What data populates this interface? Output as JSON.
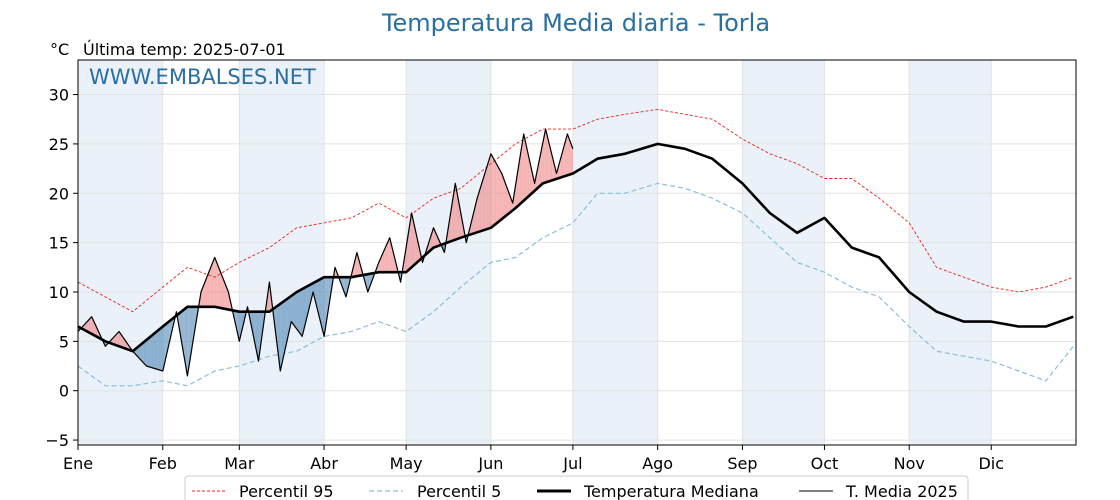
{
  "header": {
    "title": "Temperatura Media diaria - Torla",
    "unit": "°C",
    "last_temp": "Última temp: 2025-07-01",
    "watermark": "WWW.EMBALSES.NET"
  },
  "colors": {
    "p95": "#e8261f",
    "p5": "#89bfd8",
    "median": "#000000",
    "current": "#000000",
    "above_fill": "#f08a8a",
    "below_fill": "#3a78ad",
    "title": "#2a6fa0",
    "band": "#eaf1f9"
  },
  "legend": [
    {
      "label": "Percentil 95",
      "style": "p95"
    },
    {
      "label": "Percentil 5",
      "style": "p5"
    },
    {
      "label": "Temperatura Mediana",
      "style": "median"
    },
    {
      "label": "T. Media 2025",
      "style": "current"
    }
  ],
  "chart_data": {
    "type": "line",
    "title": "Temperatura Media diaria - Torla",
    "ylabel": "°C",
    "xlim": [
      0,
      365
    ],
    "ylim": [
      -5.5,
      33.5
    ],
    "yticks": [
      -5,
      0,
      5,
      10,
      15,
      20,
      25,
      30
    ],
    "ytick_labels": [
      "−5",
      "0",
      "5",
      "10",
      "15",
      "20",
      "25",
      "30"
    ],
    "month_labels": [
      "Ene",
      "Feb",
      "Mar",
      "Abr",
      "May",
      "Jun",
      "Jul",
      "Ago",
      "Sep",
      "Oct",
      "Nov",
      "Dic"
    ],
    "month_start_day": [
      0,
      31,
      59,
      90,
      120,
      151,
      181,
      212,
      243,
      273,
      304,
      334
    ],
    "shaded_months": [
      0,
      2,
      4,
      6,
      8,
      10
    ],
    "grid": true,
    "legend_position": "bottom",
    "series": [
      {
        "name": "Percentil 95",
        "key": "p95",
        "x": [
          0,
          10,
          20,
          31,
          40,
          50,
          59,
          70,
          80,
          90,
          100,
          110,
          120,
          130,
          140,
          151,
          160,
          170,
          181,
          190,
          200,
          212,
          222,
          232,
          243,
          253,
          263,
          273,
          283,
          293,
          304,
          314,
          324,
          334,
          344,
          354,
          364
        ],
        "y": [
          11.0,
          9.5,
          8.0,
          10.5,
          12.5,
          11.5,
          13.0,
          14.5,
          16.5,
          17.0,
          17.5,
          19.0,
          17.5,
          19.5,
          20.5,
          23.0,
          25.0,
          26.5,
          26.5,
          27.5,
          28.0,
          28.5,
          28.0,
          27.5,
          25.5,
          24.0,
          23.0,
          21.5,
          21.5,
          19.5,
          17.0,
          12.5,
          11.5,
          10.5,
          10.0,
          10.5,
          11.5
        ]
      },
      {
        "name": "Percentil 5",
        "key": "p5",
        "x": [
          0,
          10,
          20,
          31,
          40,
          50,
          59,
          70,
          80,
          90,
          100,
          110,
          120,
          130,
          140,
          151,
          160,
          170,
          181,
          190,
          200,
          212,
          222,
          232,
          243,
          253,
          263,
          273,
          283,
          293,
          304,
          314,
          324,
          334,
          344,
          354,
          364
        ],
        "y": [
          2.5,
          0.5,
          0.5,
          1.0,
          0.5,
          2.0,
          2.5,
          3.5,
          4.0,
          5.5,
          6.0,
          7.0,
          6.0,
          8.0,
          10.5,
          13.0,
          13.5,
          15.5,
          17.0,
          20.0,
          20.0,
          21.0,
          20.5,
          19.5,
          18.0,
          15.5,
          13.0,
          12.0,
          10.5,
          9.5,
          6.5,
          4.0,
          3.5,
          3.0,
          2.0,
          1.0,
          4.5
        ]
      },
      {
        "name": "Temperatura Mediana",
        "key": "median",
        "x": [
          0,
          10,
          20,
          31,
          40,
          50,
          59,
          70,
          80,
          90,
          100,
          110,
          120,
          130,
          140,
          151,
          160,
          170,
          181,
          190,
          200,
          212,
          222,
          232,
          243,
          253,
          263,
          273,
          283,
          293,
          304,
          314,
          324,
          334,
          344,
          354,
          364
        ],
        "y": [
          6.5,
          5.0,
          4.0,
          6.5,
          8.5,
          8.5,
          8.0,
          8.0,
          10.0,
          11.5,
          11.5,
          12.0,
          12.0,
          14.5,
          15.5,
          16.5,
          18.5,
          21.0,
          22.0,
          23.5,
          24.0,
          25.0,
          24.5,
          23.5,
          21.0,
          18.0,
          16.0,
          17.5,
          14.5,
          13.5,
          10.0,
          8.0,
          7.0,
          7.0,
          6.5,
          6.5,
          7.5
        ]
      },
      {
        "name": "T. Media 2025",
        "key": "current",
        "x": [
          0,
          5,
          10,
          15,
          20,
          25,
          31,
          36,
          40,
          45,
          50,
          55,
          59,
          62,
          66,
          70,
          74,
          78,
          82,
          86,
          90,
          94,
          98,
          102,
          106,
          110,
          114,
          118,
          122,
          126,
          130,
          134,
          138,
          142,
          146,
          151,
          155,
          159,
          163,
          167,
          171,
          175,
          179,
          181
        ],
        "y": [
          6.0,
          7.5,
          4.5,
          6.0,
          4.0,
          2.5,
          2.0,
          8.0,
          1.5,
          10.0,
          13.5,
          10.0,
          5.0,
          8.5,
          3.0,
          11.0,
          2.0,
          7.0,
          5.5,
          10.0,
          5.5,
          12.5,
          9.5,
          14.0,
          10.0,
          13.0,
          15.5,
          11.0,
          18.0,
          13.0,
          16.5,
          14.0,
          21.0,
          15.0,
          19.5,
          24.0,
          22.0,
          19.0,
          26.0,
          21.0,
          26.5,
          22.0,
          26.0,
          24.5
        ]
      }
    ]
  }
}
